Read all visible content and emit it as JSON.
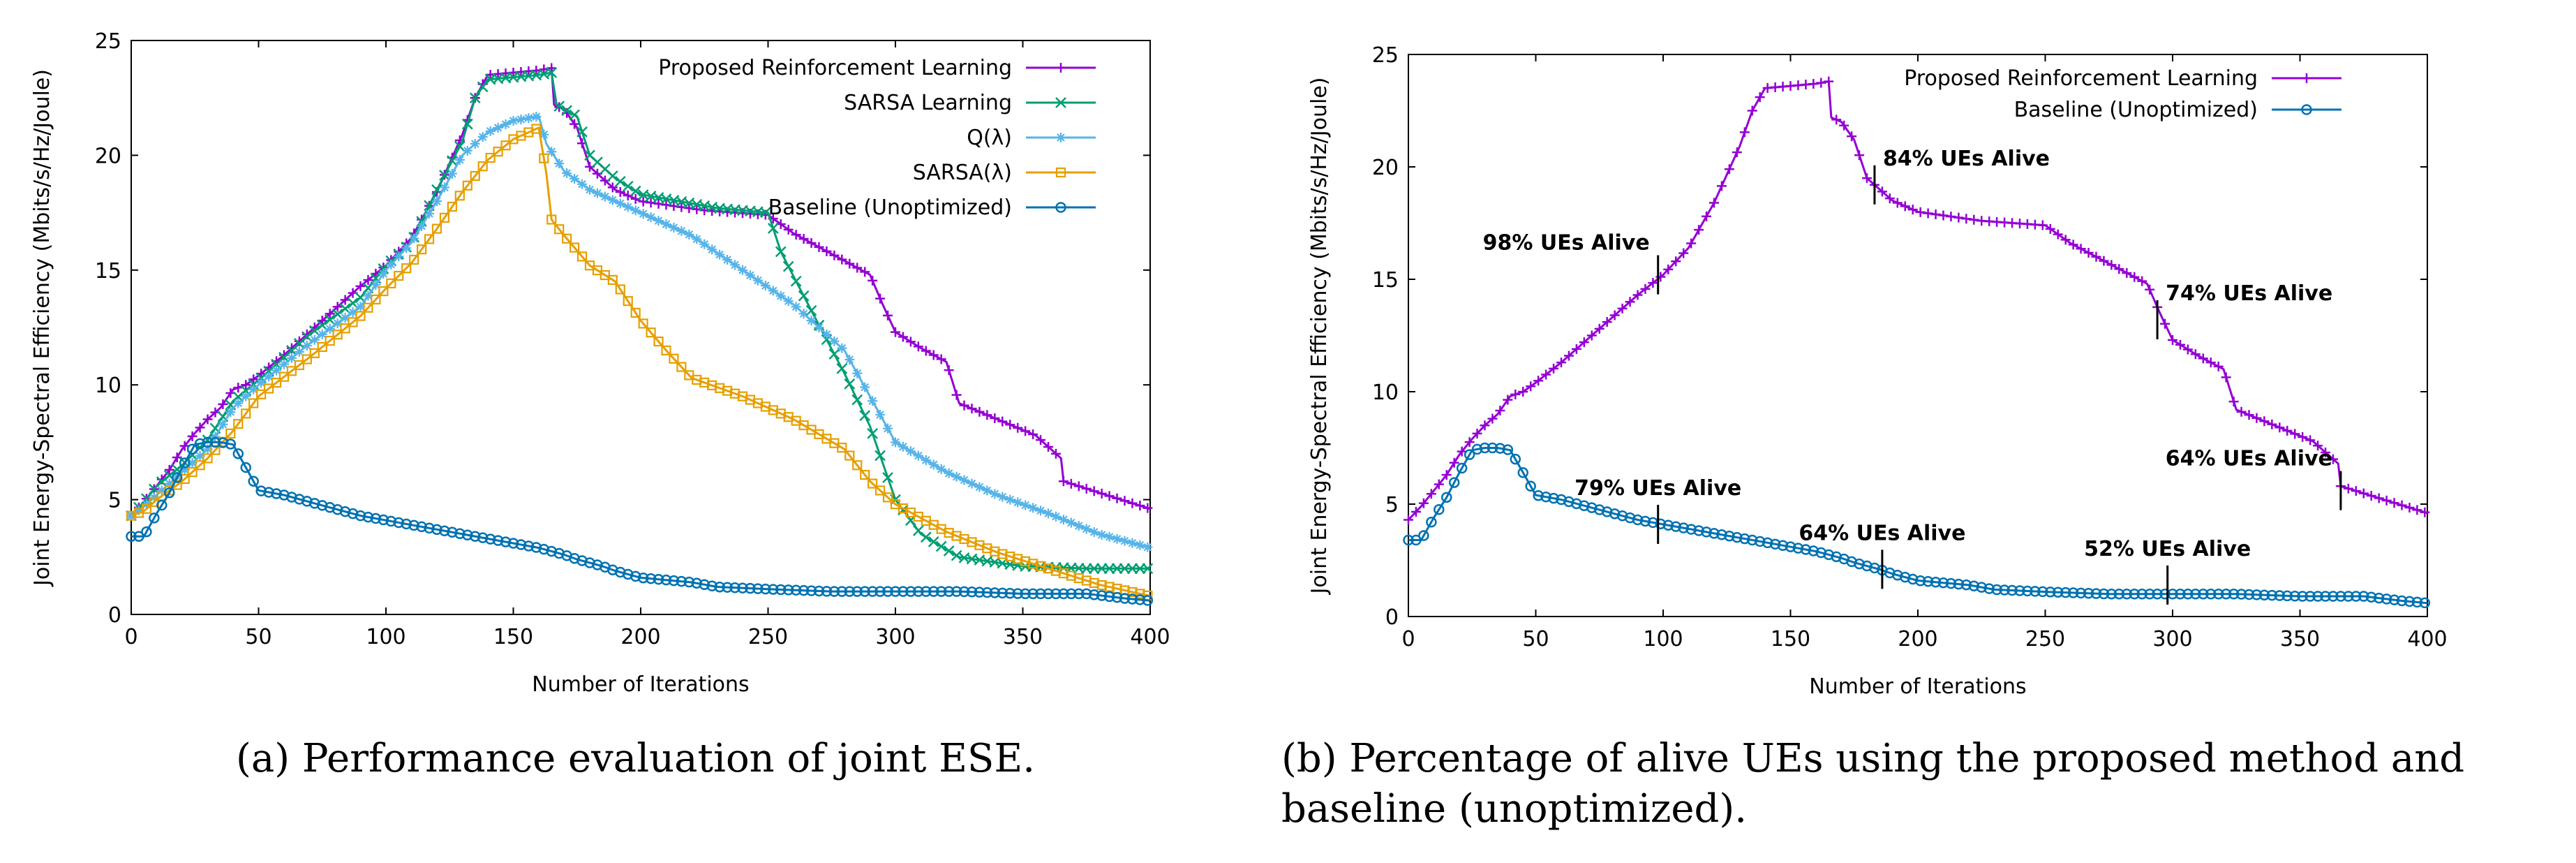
{
  "captions": {
    "a": "(a)  Performance evaluation of joint ESE.",
    "b_line1": "(b) Percentage of alive UEs using the proposed method and",
    "b_line2": "baseline (unoptimized)."
  },
  "chart_data": [
    {
      "type": "line",
      "title": "",
      "xlabel": "Number of Iterations",
      "ylabel": "Joint Energy-Spectral Efficiency (Mbits/s/Hz/Joule)",
      "xlim": [
        0,
        400
      ],
      "ylim": [
        0,
        25
      ],
      "xticks": [
        0,
        50,
        100,
        150,
        200,
        250,
        300,
        350,
        400
      ],
      "yticks": [
        0,
        5,
        10,
        15,
        20,
        25
      ],
      "grid": false,
      "legend_position": "top-right",
      "series": [
        {
          "name": "Proposed Reinforcement Learning",
          "color": "#9400d3",
          "marker": "plus",
          "x": [
            0,
            5,
            10,
            15,
            20,
            25,
            30,
            35,
            40,
            45,
            50,
            60,
            70,
            80,
            90,
            100,
            110,
            120,
            130,
            135,
            140,
            150,
            160,
            165,
            166,
            170,
            175,
            180,
            190,
            200,
            225,
            250,
            260,
            270,
            280,
            290,
            295,
            300,
            310,
            320,
            325,
            340,
            355,
            365,
            366,
            380,
            400
          ],
          "y": [
            4.3,
            4.9,
            5.6,
            6.3,
            7.2,
            7.9,
            8.5,
            9.0,
            9.8,
            10.0,
            10.4,
            11.3,
            12.3,
            13.3,
            14.3,
            15.2,
            16.4,
            18.4,
            20.9,
            22.5,
            23.5,
            23.6,
            23.7,
            23.8,
            22.2,
            22.0,
            21.2,
            19.5,
            18.5,
            18.0,
            17.6,
            17.4,
            16.6,
            16.0,
            15.4,
            14.8,
            13.5,
            12.3,
            11.6,
            11.0,
            9.2,
            8.5,
            7.8,
            6.8,
            5.8,
            5.3,
            4.6
          ]
        },
        {
          "name": "SARSA Learning",
          "color": "#009e73",
          "marker": "x",
          "x": [
            0,
            5,
            10,
            20,
            30,
            40,
            50,
            70,
            90,
            100,
            110,
            120,
            130,
            135,
            140,
            150,
            160,
            165,
            167,
            175,
            180,
            190,
            200,
            230,
            250,
            255,
            262,
            270,
            280,
            290,
            300,
            310,
            325,
            350,
            375,
            400
          ],
          "y": [
            4.3,
            4.9,
            5.6,
            6.5,
            7.6,
            9.3,
            10.2,
            12.2,
            13.8,
            15.2,
            16.2,
            18.5,
            20.6,
            22.5,
            23.3,
            23.4,
            23.5,
            23.6,
            22.2,
            21.7,
            20.0,
            19.0,
            18.3,
            17.7,
            17.5,
            15.8,
            14.3,
            12.6,
            10.5,
            8.2,
            5.0,
            3.5,
            2.5,
            2.1,
            2.0,
            2.0
          ]
        },
        {
          "name": "Q(λ)",
          "color": "#56b4e9",
          "marker": "star",
          "x": [
            0,
            5,
            10,
            20,
            30,
            40,
            50,
            70,
            90,
            100,
            110,
            120,
            130,
            140,
            150,
            160,
            163,
            170,
            180,
            200,
            220,
            240,
            260,
            280,
            290,
            300,
            320,
            340,
            360,
            380,
            400
          ],
          "y": [
            4.3,
            4.7,
            5.2,
            6.2,
            7.2,
            9.0,
            10.0,
            11.8,
            13.4,
            15.0,
            16.2,
            18.0,
            20.0,
            21.0,
            21.5,
            21.7,
            20.5,
            19.3,
            18.5,
            17.5,
            16.5,
            15.0,
            13.5,
            11.5,
            9.5,
            7.5,
            6.2,
            5.2,
            4.4,
            3.5,
            2.9
          ]
        },
        {
          "name": "SARSA(λ)",
          "color": "#e69f00",
          "marker": "square",
          "x": [
            0,
            5,
            10,
            20,
            30,
            40,
            50,
            70,
            90,
            100,
            110,
            120,
            130,
            140,
            150,
            160,
            163,
            165,
            170,
            180,
            190,
            200,
            210,
            220,
            240,
            260,
            280,
            290,
            300,
            320,
            340,
            360,
            380,
            400
          ],
          "y": [
            4.3,
            4.5,
            5.0,
            5.8,
            6.8,
            8.0,
            9.5,
            11.2,
            13.0,
            14.2,
            15.3,
            16.8,
            18.4,
            19.8,
            20.7,
            21.2,
            19.2,
            17.2,
            16.5,
            15.2,
            14.5,
            12.8,
            11.5,
            10.3,
            9.5,
            8.5,
            7.2,
            5.8,
            4.8,
            3.6,
            2.7,
            2.0,
            1.3,
            0.8
          ]
        },
        {
          "name": "Baseline (Unoptimized)",
          "color": "#0072b2",
          "marker": "circle",
          "x": [
            0,
            5,
            10,
            15,
            20,
            25,
            30,
            35,
            40,
            45,
            50,
            55,
            60,
            70,
            80,
            90,
            100,
            110,
            120,
            130,
            140,
            150,
            160,
            170,
            175,
            185,
            190,
            200,
            210,
            220,
            230,
            250,
            275,
            300,
            325,
            350,
            375,
            390,
            400
          ],
          "y": [
            3.4,
            3.4,
            4.4,
            5.3,
            6.4,
            7.4,
            7.5,
            7.5,
            7.4,
            6.4,
            5.4,
            5.3,
            5.2,
            4.9,
            4.6,
            4.3,
            4.1,
            3.9,
            3.7,
            3.5,
            3.3,
            3.1,
            2.9,
            2.6,
            2.4,
            2.1,
            1.9,
            1.6,
            1.5,
            1.4,
            1.2,
            1.1,
            1.0,
            1.0,
            1.0,
            0.9,
            0.9,
            0.7,
            0.6
          ]
        }
      ]
    },
    {
      "type": "line",
      "title": "",
      "xlabel": "Number of Iterations",
      "ylabel": "Joint Energy-Spectral Efficiency (Mbits/s/Hz/Joule)",
      "xlim": [
        0,
        400
      ],
      "ylim": [
        0,
        25
      ],
      "xticks": [
        0,
        50,
        100,
        150,
        200,
        250,
        300,
        350,
        400
      ],
      "yticks": [
        0,
        5,
        10,
        15,
        20,
        25
      ],
      "grid": false,
      "legend_position": "top-right",
      "series": [
        {
          "name": "Proposed Reinforcement Learning",
          "color": "#9400d3",
          "marker": "plus",
          "x": [
            0,
            5,
            10,
            15,
            20,
            25,
            30,
            35,
            40,
            45,
            50,
            60,
            70,
            80,
            90,
            100,
            110,
            120,
            130,
            135,
            140,
            150,
            160,
            165,
            166,
            170,
            175,
            180,
            190,
            200,
            225,
            250,
            260,
            270,
            280,
            290,
            295,
            300,
            310,
            320,
            325,
            340,
            355,
            365,
            366,
            380,
            400
          ],
          "y": [
            4.3,
            4.9,
            5.6,
            6.3,
            7.2,
            7.9,
            8.5,
            9.0,
            9.8,
            10.0,
            10.4,
            11.3,
            12.3,
            13.3,
            14.3,
            15.2,
            16.4,
            18.4,
            20.9,
            22.5,
            23.5,
            23.6,
            23.7,
            23.8,
            22.2,
            22.0,
            21.2,
            19.5,
            18.5,
            18.0,
            17.6,
            17.4,
            16.6,
            16.0,
            15.4,
            14.8,
            13.5,
            12.3,
            11.6,
            11.0,
            9.2,
            8.5,
            7.8,
            6.8,
            5.8,
            5.3,
            4.6
          ]
        },
        {
          "name": "Baseline (Unoptimized)",
          "color": "#0072b2",
          "marker": "circle",
          "x": [
            0,
            5,
            10,
            15,
            20,
            25,
            30,
            35,
            40,
            45,
            50,
            55,
            60,
            70,
            80,
            90,
            100,
            110,
            120,
            130,
            140,
            150,
            160,
            170,
            175,
            185,
            190,
            200,
            210,
            220,
            230,
            250,
            275,
            300,
            325,
            350,
            375,
            390,
            400
          ],
          "y": [
            3.4,
            3.4,
            4.4,
            5.3,
            6.4,
            7.4,
            7.5,
            7.5,
            7.4,
            6.4,
            5.4,
            5.3,
            5.2,
            4.9,
            4.6,
            4.3,
            4.1,
            3.9,
            3.7,
            3.5,
            3.3,
            3.1,
            2.9,
            2.6,
            2.4,
            2.1,
            1.9,
            1.6,
            1.5,
            1.4,
            1.2,
            1.1,
            1.0,
            1.0,
            1.0,
            0.9,
            0.9,
            0.7,
            0.6
          ]
        }
      ],
      "annotations": [
        {
          "text": "98% UEs Alive",
          "x": 98,
          "y": 15.2,
          "anchor": "left"
        },
        {
          "text": "84% UEs Alive",
          "x": 183,
          "y": 19.2,
          "anchor": "right"
        },
        {
          "text": "74% UEs Alive",
          "x": 294,
          "y": 13.2,
          "anchor": "right"
        },
        {
          "text": "64% UEs Alive",
          "x": 366,
          "y": 5.6,
          "anchor": "left"
        },
        {
          "text": "79% UEs Alive",
          "x": 98,
          "y": 4.1,
          "anchor": "above"
        },
        {
          "text": "64% UEs Alive",
          "x": 186,
          "y": 2.1,
          "anchor": "above"
        },
        {
          "text": "52% UEs Alive",
          "x": 298,
          "y": 1.4,
          "anchor": "above"
        }
      ]
    }
  ]
}
